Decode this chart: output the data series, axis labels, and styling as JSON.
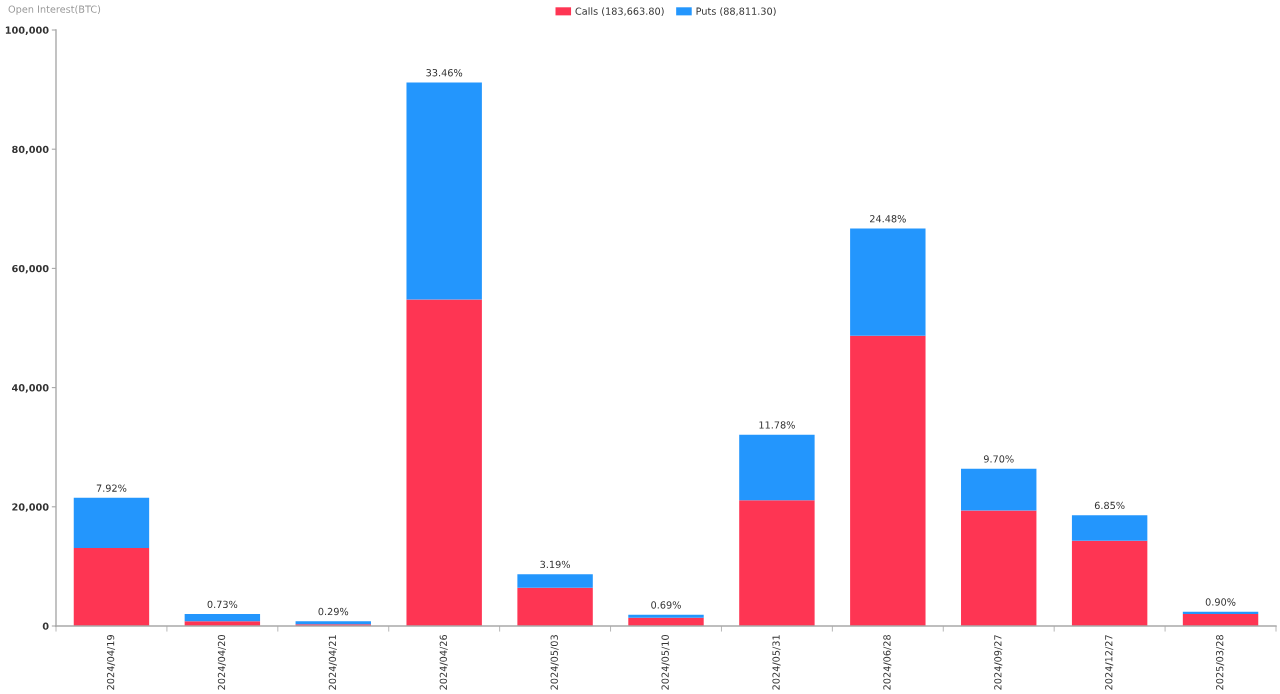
{
  "chart_data": {
    "type": "bar",
    "ylabel": "Open Interest(BTC)",
    "categories": [
      "2024/04/19",
      "2024/04/20",
      "2024/04/21",
      "2024/04/26",
      "2024/05/03",
      "2024/05/10",
      "2024/05/31",
      "2024/06/28",
      "2024/09/27",
      "2024/12/27",
      "2025/03/28"
    ],
    "stacked": true,
    "series": [
      {
        "name": "Calls (183,663.80)",
        "color": "#fe3553",
        "values": [
          13100,
          800,
          300,
          54800,
          6400,
          1400,
          21100,
          48700,
          19400,
          14300,
          2000
        ]
      },
      {
        "name": "Puts (88,811.30)",
        "color": "#2396fd",
        "values": [
          8400,
          1200,
          500,
          36400,
          2300,
          500,
          11000,
          18000,
          7000,
          4300,
          400
        ]
      }
    ],
    "annotations": [
      {
        "text": "7.92%",
        "x": "2024/04/19",
        "y": 21500
      },
      {
        "text": "0.73%",
        "x": "2024/04/20",
        "y": 2000
      },
      {
        "text": "0.29%",
        "x": "2024/04/21",
        "y": 800
      },
      {
        "text": "33.46%",
        "x": "2024/04/26",
        "y": 91200
      },
      {
        "text": "3.19%",
        "x": "2024/05/03",
        "y": 8700
      },
      {
        "text": "0.69%",
        "x": "2024/05/10",
        "y": 1900
      },
      {
        "text": "11.78%",
        "x": "2024/05/31",
        "y": 32100
      },
      {
        "text": "24.48%",
        "x": "2024/06/28",
        "y": 66700
      },
      {
        "text": "9.70%",
        "x": "2024/09/27",
        "y": 26400
      },
      {
        "text": "6.85%",
        "x": "2024/12/27",
        "y": 18600
      },
      {
        "text": "0.90%",
        "x": "2025/03/28",
        "y": 2400
      }
    ],
    "ylim": [
      0,
      100000
    ],
    "yticks": [
      0,
      {
        "value": 20000,
        "label": "20,000"
      },
      {
        "value": 40000,
        "label": "40,000"
      },
      {
        "value": 60000,
        "label": "60,000"
      },
      {
        "value": 80000,
        "label": "80,000"
      },
      {
        "value": 100000,
        "label": "100,000"
      }
    ],
    "legend": "top",
    "grid": false
  }
}
